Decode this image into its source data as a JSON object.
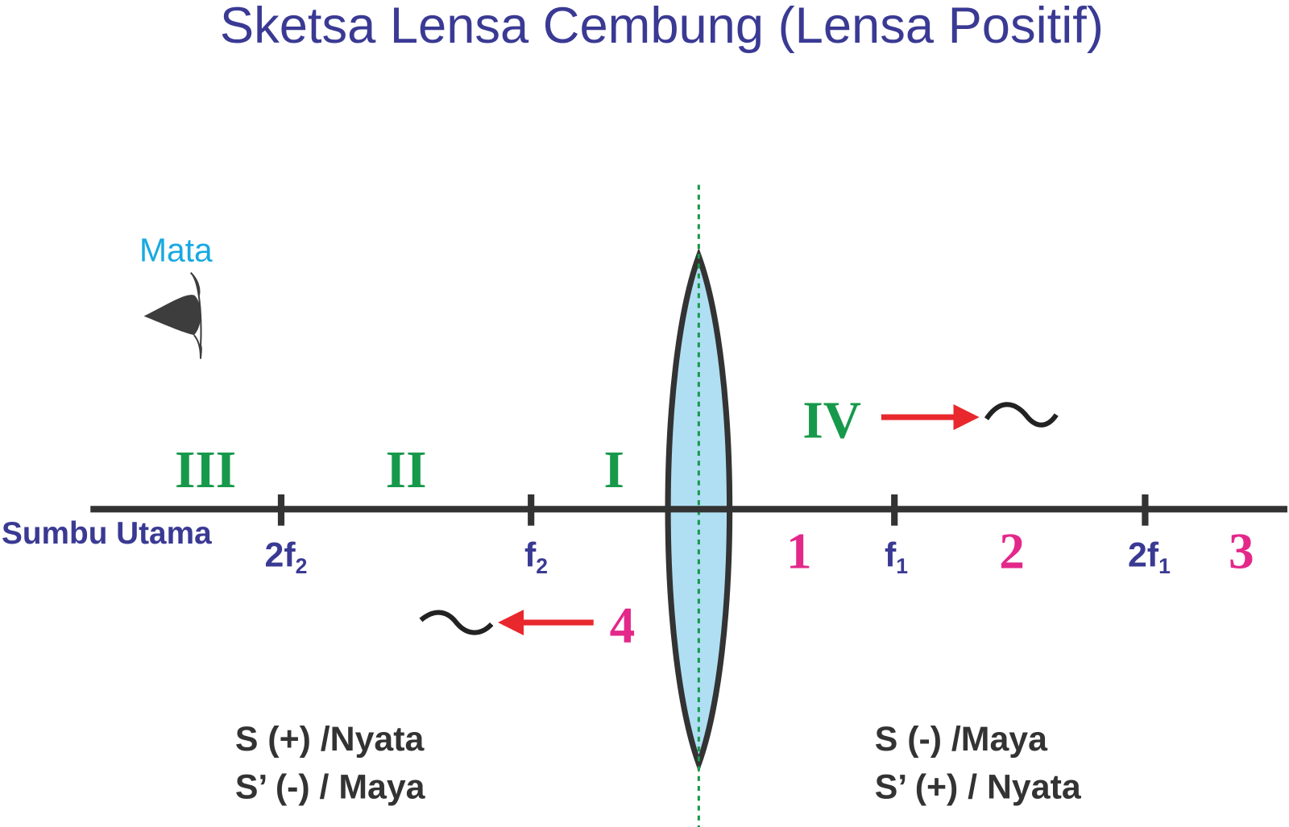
{
  "title": "Sketsa Lensa Cembung (Lensa Positif)",
  "eye_label": "Mata",
  "axis_label": "Sumbu Utama",
  "points": [
    {
      "main": "2f",
      "sub": "2"
    },
    {
      "main": "f",
      "sub": "2"
    },
    {
      "main": "f",
      "sub": "1"
    },
    {
      "main": "2f",
      "sub": "1"
    }
  ],
  "object_regions": [
    "III",
    "II",
    "I",
    "IV"
  ],
  "image_regions": [
    "1",
    "2",
    "3",
    "4"
  ],
  "left_note": [
    "S (+) /Nyata",
    "S’ (-) / Maya"
  ],
  "right_note": [
    "S (-) /Maya",
    "S’ (+) / Nyata"
  ]
}
